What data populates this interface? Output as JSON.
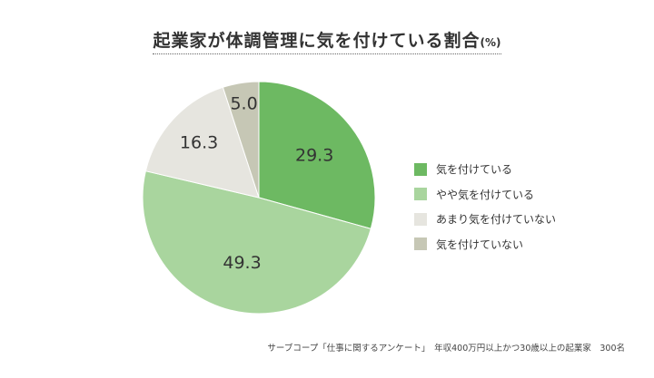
{
  "header": {
    "title": "起業家が体調管理に気を付けている割合",
    "unit": "(%)"
  },
  "chart_data": {
    "type": "pie",
    "title": "起業家が体調管理に気を付けている割合",
    "unit": "(%)",
    "start": "12 o'clock",
    "direction": "clockwise",
    "slices": [
      {
        "label": "気を付けている",
        "value": 29.3,
        "value_label": "29.3",
        "color": "#6db962"
      },
      {
        "label": "やや気を付けている",
        "value": 49.3,
        "value_label": "49.3",
        "color": "#a9d59e"
      },
      {
        "label": "あまり気を付けていない",
        "value": 16.3,
        "value_label": "16.3",
        "color": "#e6e5df"
      },
      {
        "label": "気を付けていない",
        "value": 5.0,
        "value_label": "5.0",
        "color": "#c6c7b5"
      }
    ],
    "legend_position": "right"
  },
  "footnote": "サーブコープ「仕事に関するアンケート」　年収400万円以上かつ30歳以上の起業家　300名"
}
